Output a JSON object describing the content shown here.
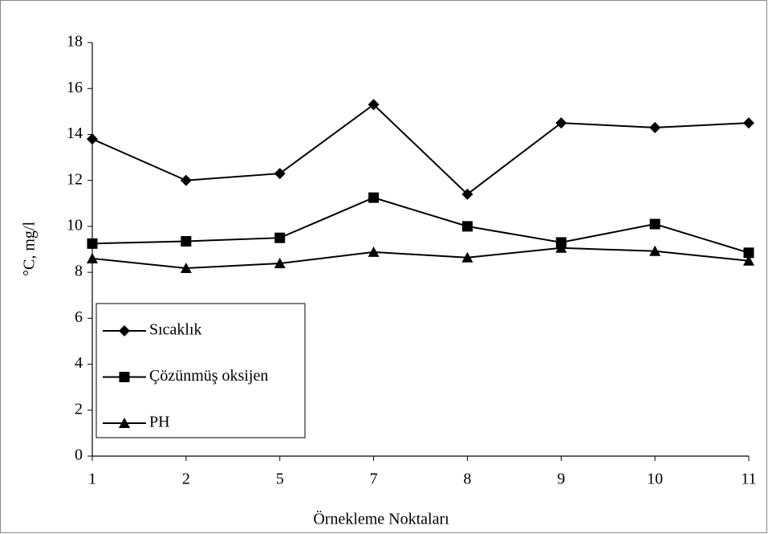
{
  "chart_data": {
    "type": "line",
    "x_label": "Örnekleme Noktaları",
    "y_label": "°C,  mg/l",
    "categories": [
      "1",
      "2",
      "5",
      "7",
      "8",
      "9",
      "10",
      "11"
    ],
    "series": [
      {
        "name": "Sıcaklık",
        "color": "#000000",
        "marker": "diamond",
        "values": [
          13.8,
          12.0,
          12.3,
          15.3,
          11.4,
          14.5,
          14.3,
          14.5
        ]
      },
      {
        "name": "Çözünmüş oksijen",
        "color": "#000000",
        "marker": "square",
        "values": [
          9.25,
          9.35,
          9.5,
          11.25,
          10.0,
          9.3,
          10.1,
          8.85
        ]
      },
      {
        "name": "PH",
        "color": "#000000",
        "marker": "triangle",
        "values": [
          8.6,
          8.18,
          8.39,
          8.88,
          8.64,
          9.06,
          8.92,
          8.5
        ]
      }
    ],
    "ylim": [
      0,
      18
    ],
    "yticks": [
      0,
      2,
      4,
      6,
      8,
      10,
      12,
      14,
      16,
      18
    ],
    "grid": false,
    "legend": "lower left"
  }
}
